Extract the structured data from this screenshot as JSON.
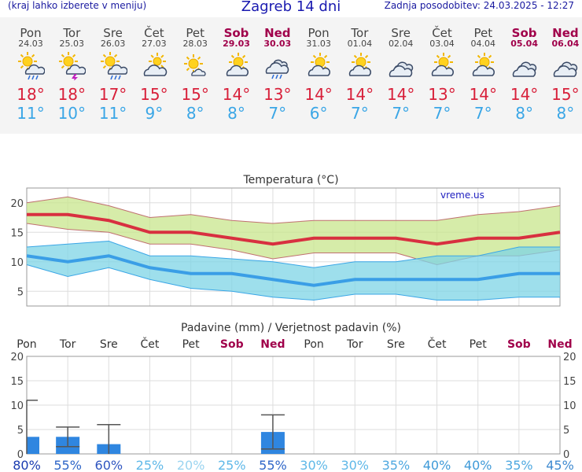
{
  "header": {
    "menu_hint": "(kraj lahko izberete v meniju)",
    "title": "Zagreb 14 dni",
    "updated": "Zadnja posodobitev: 24.03.2025 - 12:27"
  },
  "days": [
    {
      "name": "Pon",
      "date": "24.03",
      "weekend": false,
      "icon": "partly-sunny-rain-icon",
      "max": "18°",
      "min": "11°"
    },
    {
      "name": "Tor",
      "date": "25.03",
      "weekend": false,
      "icon": "partly-sunny-storm-icon",
      "max": "18°",
      "min": "10°"
    },
    {
      "name": "Sre",
      "date": "26.03",
      "weekend": false,
      "icon": "partly-sunny-rain-icon",
      "max": "17°",
      "min": "11°"
    },
    {
      "name": "Čet",
      "date": "27.03",
      "weekend": false,
      "icon": "cloudy-icon",
      "max": "15°",
      "min": "9°"
    },
    {
      "name": "Pet",
      "date": "28.03",
      "weekend": false,
      "icon": "sunny-icon",
      "max": "15°",
      "min": "8°"
    },
    {
      "name": "Sob",
      "date": "29.03",
      "weekend": true,
      "icon": "partly-cloudy-icon",
      "max": "14°",
      "min": "8°"
    },
    {
      "name": "Ned",
      "date": "30.03",
      "weekend": true,
      "icon": "rain-cloud-icon",
      "max": "13°",
      "min": "7°"
    },
    {
      "name": "Pon",
      "date": "31.03",
      "weekend": false,
      "icon": "partly-cloudy-icon",
      "max": "14°",
      "min": "6°"
    },
    {
      "name": "Tor",
      "date": "01.04",
      "weekend": false,
      "icon": "partly-cloudy-icon",
      "max": "14°",
      "min": "7°"
    },
    {
      "name": "Sre",
      "date": "02.04",
      "weekend": false,
      "icon": "overcast-icon",
      "max": "14°",
      "min": "7°"
    },
    {
      "name": "Čet",
      "date": "03.04",
      "weekend": false,
      "icon": "partly-cloudy-icon",
      "max": "13°",
      "min": "7°"
    },
    {
      "name": "Pet",
      "date": "04.04",
      "weekend": false,
      "icon": "partly-cloudy-icon",
      "max": "14°",
      "min": "7°"
    },
    {
      "name": "Sob",
      "date": "05.04",
      "weekend": true,
      "icon": "overcast-icon",
      "max": "14°",
      "min": "8°"
    },
    {
      "name": "Ned",
      "date": "06.04",
      "weekend": true,
      "icon": "overcast-icon",
      "max": "15°",
      "min": "8°"
    }
  ],
  "colors": {
    "max": "#d8203a",
    "min": "#3aa6e6",
    "weekend": "#a0004a",
    "bar": "#2f86e0",
    "max_band": "#c8e68c",
    "min_band": "#7ed4e6"
  },
  "chart_data": [
    {
      "type": "line",
      "title": "Temperatura (°C)",
      "watermark": "vreme.us",
      "ylim": [
        2.5,
        22.5
      ],
      "yticks": [
        5,
        10,
        15,
        20
      ],
      "x": [
        "Pon",
        "Tor",
        "Sre",
        "Čet",
        "Pet",
        "Sob",
        "Ned",
        "Pon",
        "Tor",
        "Sre",
        "Čet",
        "Pet",
        "Sob",
        "Ned"
      ],
      "series": [
        {
          "name": "max",
          "values": [
            18,
            18,
            17,
            15,
            15,
            14,
            13,
            14,
            14,
            14,
            13,
            14,
            14,
            15
          ]
        },
        {
          "name": "min",
          "values": [
            11,
            10,
            11,
            9,
            8,
            8,
            7,
            6,
            7,
            7,
            7,
            7,
            8,
            8
          ]
        }
      ],
      "max_band": {
        "upper": [
          20,
          21,
          19.5,
          17.5,
          18,
          17,
          16.5,
          17,
          17,
          17,
          17,
          18,
          18.5,
          19.5
        ],
        "lower": [
          16.5,
          15.5,
          15,
          13,
          13,
          12,
          10.5,
          11.5,
          11.5,
          11.5,
          9.5,
          11,
          11,
          12
        ]
      },
      "min_band": {
        "upper": [
          12.5,
          13,
          13.5,
          11,
          11,
          10.5,
          10,
          9,
          10,
          10,
          11,
          11,
          12.5,
          12.5
        ],
        "lower": [
          9.5,
          7.5,
          9,
          7,
          5.5,
          5,
          4,
          3.5,
          4.5,
          4.5,
          3.5,
          3.5,
          4,
          4
        ]
      }
    },
    {
      "type": "bar",
      "title": "Padavine (mm) / Verjetnost padavin (%)",
      "categories": [
        "Pon",
        "Tor",
        "Sre",
        "Čet",
        "Pet",
        "Sob",
        "Ned",
        "Pon",
        "Tor",
        "Sre",
        "Čet",
        "Pet",
        "Sob",
        "Ned"
      ],
      "values": [
        3.5,
        3.5,
        2,
        0,
        0,
        0,
        4.5,
        0,
        0,
        0,
        0,
        0,
        0,
        0
      ],
      "error_high": [
        11,
        5.5,
        6,
        0,
        0,
        0,
        8,
        0,
        0,
        0,
        0,
        0,
        0,
        0
      ],
      "error_low": [
        0,
        1.5,
        0,
        0,
        0,
        0,
        1,
        0,
        0,
        0,
        0,
        0,
        0,
        0
      ],
      "ylim": [
        0,
        20
      ],
      "yticks": [
        0,
        5,
        10,
        15,
        20
      ],
      "probability": [
        "80%",
        "55%",
        "60%",
        "25%",
        "20%",
        "25%",
        "55%",
        "30%",
        "30%",
        "35%",
        "40%",
        "40%",
        "35%",
        "45%"
      ],
      "probability_colors": [
        "#1a3bb0",
        "#2f66c8",
        "#2f55c0",
        "#5fb8e8",
        "#9ad4f0",
        "#5fb8e8",
        "#2f66c8",
        "#5fb8e8",
        "#5fb8e8",
        "#4fa8e0",
        "#3f9ad8",
        "#3f9ad8",
        "#4fa8e0",
        "#3f8ad0"
      ]
    }
  ]
}
